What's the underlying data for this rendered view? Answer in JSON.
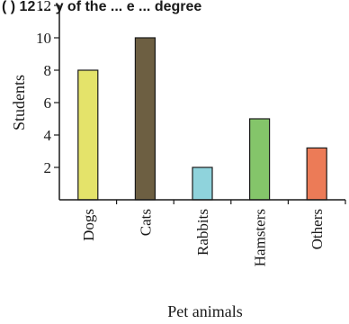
{
  "header_fragment": "( ) 12 ... y of the ... e ... degree",
  "chart_data": {
    "type": "bar",
    "categories": [
      "Dogs",
      "Cats",
      "Rabbits",
      "Hamsters",
      "Others"
    ],
    "values": [
      8,
      10,
      2,
      5,
      3.2
    ],
    "colors": [
      "#e4e36a",
      "#6d5f42",
      "#8fd3dc",
      "#84c56a",
      "#ec7b57"
    ],
    "xlabel": "Pet animals",
    "ylabel": "Students",
    "ylim": [
      0,
      12
    ],
    "yticks": [
      2,
      4,
      6,
      8,
      10,
      12
    ],
    "grid": false
  }
}
